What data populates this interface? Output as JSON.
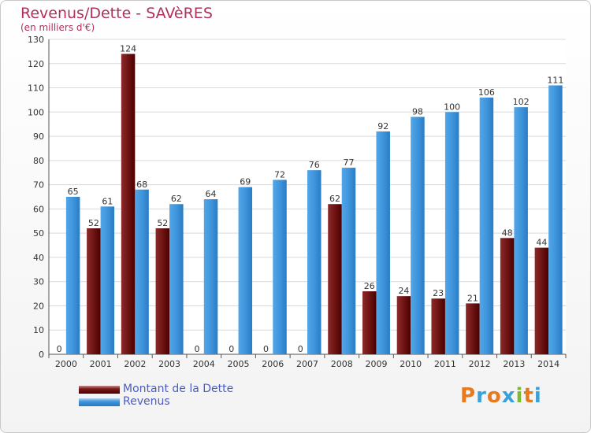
{
  "header": {
    "title": "Revenus/Dette - SAVèRES",
    "subtitle": "(en milliers d'€)"
  },
  "legend": {
    "items": [
      {
        "label": "Montant de la Dette",
        "color": "#7a1a1a"
      },
      {
        "label": "Revenus",
        "color": "#3f95dc"
      }
    ]
  },
  "logo": {
    "letters": [
      "P",
      "r",
      "o",
      "x",
      "i",
      "t",
      "i"
    ],
    "colors": [
      "#e87a1e",
      "#3aa0d8",
      "#e87a1e",
      "#3aa0d8",
      "#7dbb2c",
      "#e87a1e",
      "#3aa0d8"
    ]
  },
  "chart_data": {
    "type": "bar",
    "title": "Revenus/Dette - SAVèRES",
    "subtitle": "(en milliers d'€)",
    "categories": [
      "2000",
      "2001",
      "2002",
      "2003",
      "2004",
      "2005",
      "2006",
      "2007",
      "2008",
      "2009",
      "2010",
      "2011",
      "2012",
      "2013",
      "2014"
    ],
    "series": [
      {
        "name": "Montant de la Dette",
        "color": "#7a1a1a",
        "values": [
          0,
          52,
          124,
          52,
          0,
          0,
          0,
          0,
          62,
          26,
          24,
          23,
          21,
          48,
          44
        ]
      },
      {
        "name": "Revenus",
        "color": "#3f95dc",
        "values": [
          65,
          61,
          68,
          62,
          64,
          69,
          72,
          76,
          77,
          92,
          98,
          100,
          106,
          102,
          111
        ]
      }
    ],
    "ylim": [
      0,
      130
    ],
    "yticks": [
      0,
      10,
      20,
      30,
      40,
      50,
      60,
      70,
      80,
      90,
      100,
      110,
      120,
      130
    ],
    "grid": true,
    "legend_position": "bottom-left"
  }
}
